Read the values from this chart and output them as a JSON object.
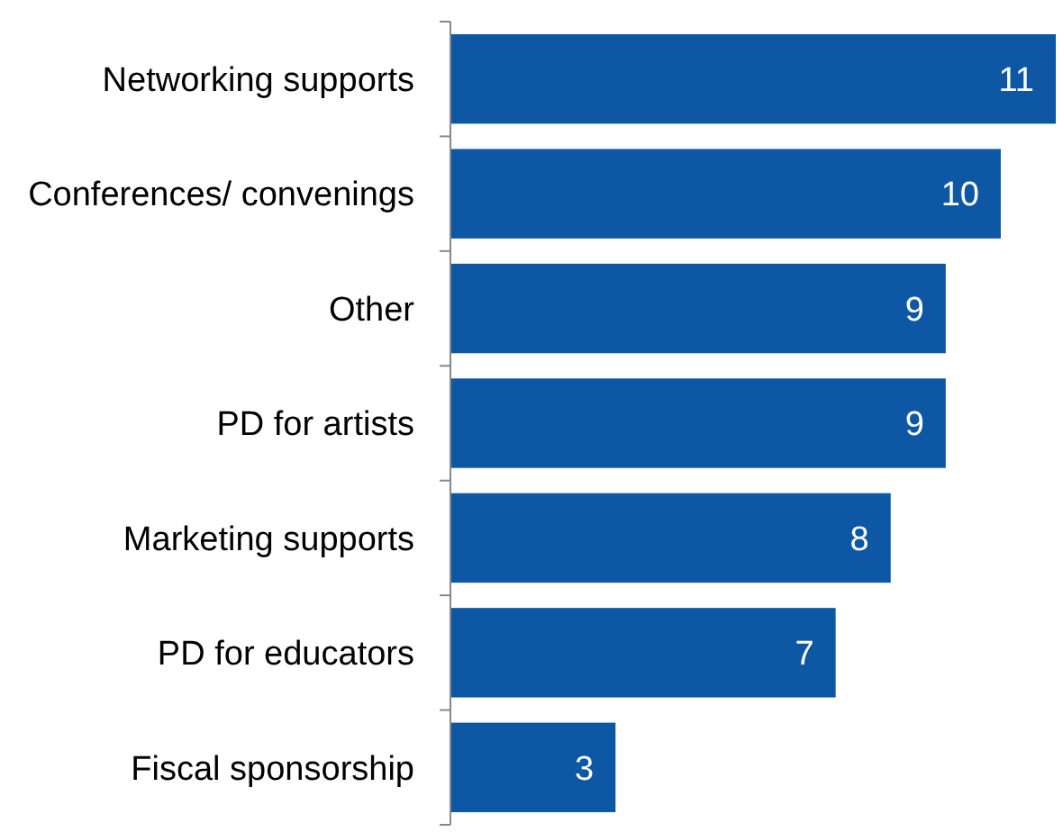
{
  "chart_data": {
    "type": "bar",
    "orientation": "horizontal",
    "categories": [
      "Networking supports",
      "Conferences/ convenings",
      "Other",
      "PD for artists",
      "Marketing supports",
      "PD for educators",
      "Fiscal sponsorship"
    ],
    "values": [
      11,
      10,
      9,
      9,
      8,
      7,
      3
    ],
    "color": "#0e57a5",
    "data_labels": true
  }
}
